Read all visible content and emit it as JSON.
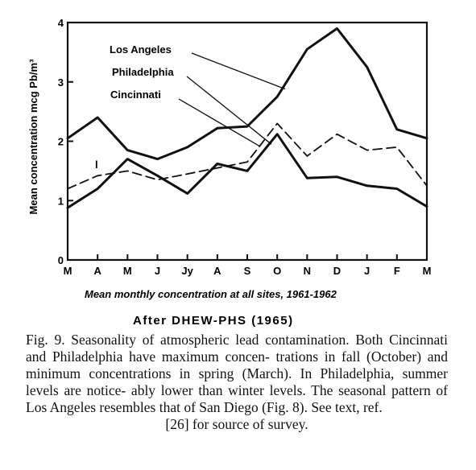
{
  "chart_data": {
    "type": "line",
    "title": "",
    "ylabel": "Mean concentration mcg Pb/m³",
    "xlabel": "Mean monthly concentration at all sites, 1961-1962",
    "source": "After DHEW-PHS (1965)",
    "categories": [
      "M",
      "A",
      "M",
      "J",
      "Jy",
      "A",
      "S",
      "O",
      "N",
      "D",
      "J",
      "F",
      "M"
    ],
    "yticks": [
      0,
      1,
      2,
      3,
      4
    ],
    "ylim": [
      0,
      4
    ],
    "grid": false,
    "series": [
      {
        "name": "Los Angeles",
        "style": "solid",
        "values": [
          2.05,
          2.4,
          1.85,
          1.7,
          1.9,
          2.22,
          2.25,
          2.75,
          3.55,
          3.9,
          3.25,
          2.2,
          2.05
        ]
      },
      {
        "name": "Philadelphia",
        "style": "dashed",
        "values": [
          1.2,
          1.42,
          1.5,
          1.35,
          1.45,
          1.55,
          1.65,
          2.3,
          1.75,
          2.12,
          1.85,
          1.9,
          1.25
        ]
      },
      {
        "name": "Cincinnati",
        "style": "solid",
        "values": [
          0.88,
          1.2,
          1.7,
          1.42,
          1.12,
          1.62,
          1.5,
          2.12,
          1.38,
          1.4,
          1.25,
          1.2,
          0.9
        ]
      }
    ],
    "dash_marker": "l"
  },
  "caption": {
    "lines": [
      "Fig. 9. Seasonality of atmospheric lead contamination.",
      "Both Cincinnati and Philadelphia have maximum concen-",
      "trations in fall (October) and minimum concentrations in",
      "spring (March). In Philadelphia, summer levels are notice-",
      "ably lower than winter levels. The seasonal pattern of Los",
      "Angeles resembles that of San Diego (Fig. 8). See text, ref."
    ],
    "last_line": "[26] for source of survey."
  },
  "colors": {
    "ink": "#111111",
    "background": "#ffffff"
  }
}
